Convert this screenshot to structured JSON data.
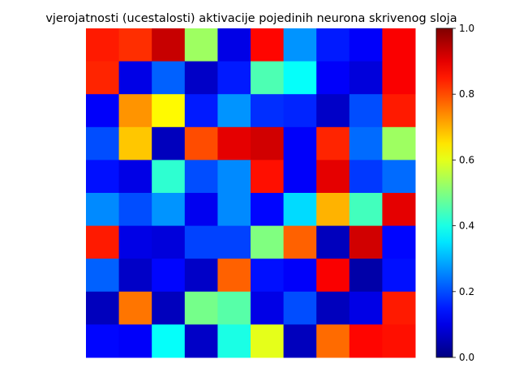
{
  "chart_data": {
    "type": "heatmap",
    "title": "vjerojatnosti (ucestalosti) aktivacije pojedinih neurona skrivenog sloja",
    "xlabel": "",
    "ylabel": "",
    "rows": 10,
    "cols": 10,
    "colormap": "jet",
    "vmin": 0.0,
    "vmax": 1.0,
    "colorbar_ticks": [
      "0.0",
      "0.2",
      "0.4",
      "0.6",
      "0.8",
      "1.0"
    ],
    "colorbar_tick_values": [
      0.0,
      0.2,
      0.4,
      0.6,
      0.8,
      1.0
    ],
    "values": [
      [
        0.85,
        0.83,
        0.93,
        0.53,
        0.1,
        0.87,
        0.27,
        0.15,
        0.12,
        0.88
      ],
      [
        0.84,
        0.1,
        0.22,
        0.07,
        0.15,
        0.45,
        0.38,
        0.12,
        0.09,
        0.88
      ],
      [
        0.12,
        0.73,
        0.63,
        0.15,
        0.27,
        0.17,
        0.16,
        0.07,
        0.2,
        0.85
      ],
      [
        0.2,
        0.68,
        0.06,
        0.8,
        0.9,
        0.92,
        0.12,
        0.84,
        0.23,
        0.53
      ],
      [
        0.14,
        0.1,
        0.42,
        0.2,
        0.26,
        0.86,
        0.12,
        0.9,
        0.18,
        0.23
      ],
      [
        0.26,
        0.2,
        0.27,
        0.11,
        0.26,
        0.13,
        0.34,
        0.7,
        0.44,
        0.9
      ],
      [
        0.85,
        0.1,
        0.09,
        0.19,
        0.19,
        0.5,
        0.78,
        0.06,
        0.92,
        0.13
      ],
      [
        0.22,
        0.07,
        0.13,
        0.07,
        0.78,
        0.14,
        0.12,
        0.88,
        0.04,
        0.14
      ],
      [
        0.06,
        0.76,
        0.06,
        0.49,
        0.46,
        0.1,
        0.2,
        0.06,
        0.1,
        0.85
      ],
      [
        0.13,
        0.12,
        0.38,
        0.07,
        0.4,
        0.6,
        0.06,
        0.77,
        0.87,
        0.86
      ]
    ]
  }
}
